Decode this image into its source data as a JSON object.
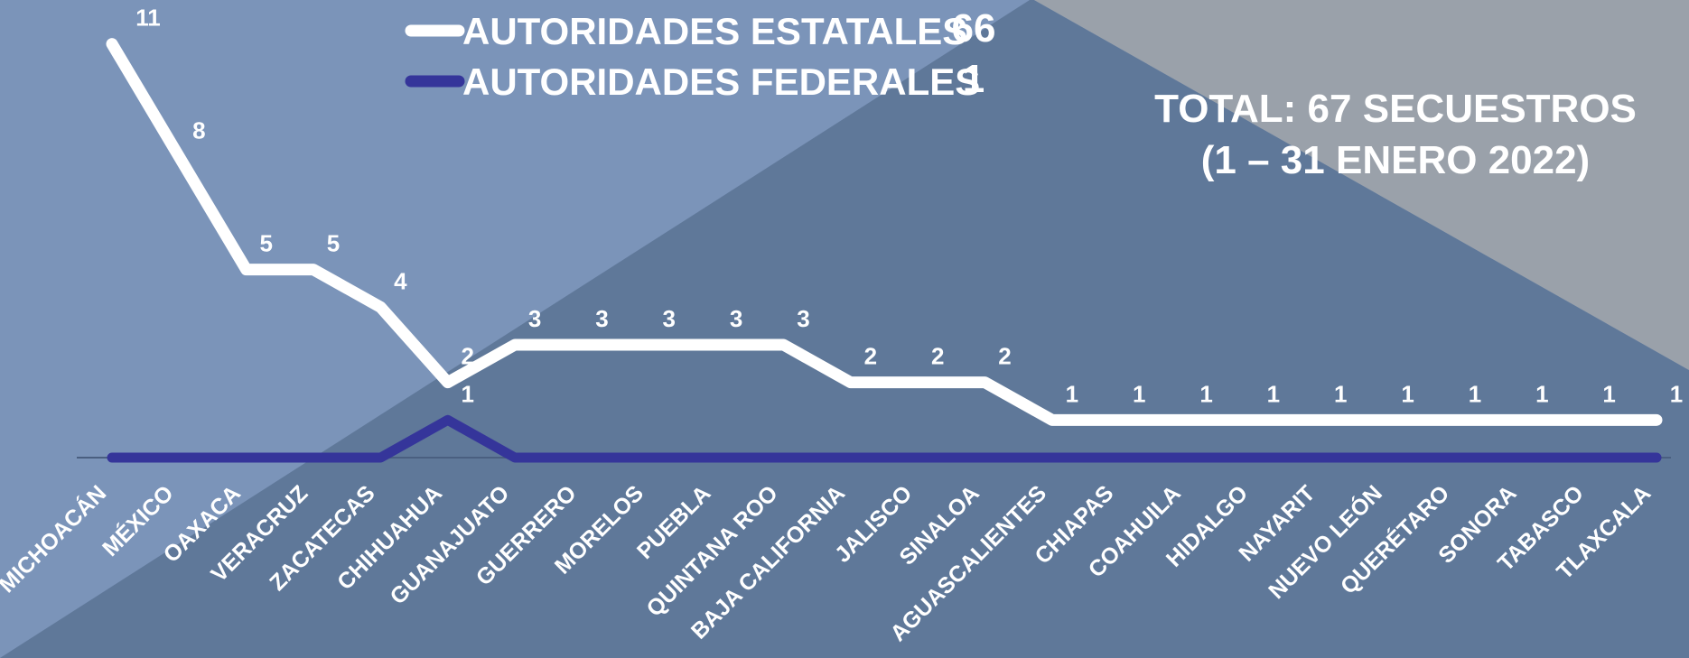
{
  "chart_data": {
    "type": "line",
    "title": "TOTAL: 67 SECUESTROS",
    "subtitle": "(1 – 31 ENERO 2022)",
    "categories": [
      "MICHOACÁN",
      "MÉXICO",
      "OAXACA",
      "VERACRUZ",
      "ZACATECAS",
      "CHIHUAHUA",
      "GUANAJUATO",
      "GUERRERO",
      "MORELOS",
      "PUEBLA",
      "QUINTANA ROO",
      "BAJA CALIFORNIA",
      "JALISCO",
      "SINALOA",
      "AGUASCALIENTES",
      "CHIAPAS",
      "COAHUILA",
      "HIDALGO",
      "NAYARIT",
      "NUEVO LEÓN",
      "QUERÉTARO",
      "SONORA",
      "TABASCO",
      "TLAXCALA"
    ],
    "series": [
      {
        "name": "AUTORIDADES ESTATALES",
        "total": 66,
        "color": "#ffffff",
        "values": [
          11,
          8,
          5,
          5,
          4,
          2,
          3,
          3,
          3,
          3,
          3,
          2,
          2,
          2,
          1,
          1,
          1,
          1,
          1,
          1,
          1,
          1,
          1,
          1
        ]
      },
      {
        "name": "AUTORIDADES FEDERALES",
        "total": 1,
        "color": "#35359a",
        "values": [
          0,
          0,
          0,
          0,
          0,
          1,
          0,
          0,
          0,
          0,
          0,
          0,
          0,
          0,
          0,
          0,
          0,
          0,
          0,
          0,
          0,
          0,
          0,
          0
        ]
      }
    ],
    "ylim": [
      0,
      12
    ],
    "grid": false
  }
}
